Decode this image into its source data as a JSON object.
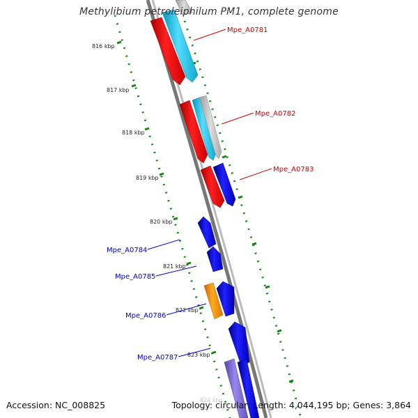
{
  "title": "Methylibium petroleiphilum PM1, complete genome",
  "footer": {
    "accession": "Accession: NC_008825",
    "topology": "Topology: circular; Length: 4,044,195 bp; Genes: 3,864"
  },
  "scale_labels": [
    "816 kbp",
    "817 kbp",
    "818 kbp",
    "819 kbp",
    "820 kbp",
    "821 kbp",
    "822 kbp",
    "823 kbp",
    "824 kbp"
  ],
  "genes": [
    {
      "name": "Mpe_A0781",
      "strand": "forward",
      "color": "#cc0000"
    },
    {
      "name": "Mpe_A0782",
      "strand": "forward",
      "color": "#cc0000"
    },
    {
      "name": "Mpe_A0783",
      "strand": "forward",
      "color": "#cc0000"
    },
    {
      "name": "Mpe_A0784",
      "strand": "reverse",
      "color": "#0000cc"
    },
    {
      "name": "Mpe_A0785",
      "strand": "reverse",
      "color": "#0000cc"
    },
    {
      "name": "Mpe_A0786",
      "strand": "reverse",
      "color": "#0000cc"
    },
    {
      "name": "Mpe_A0787",
      "strand": "reverse",
      "color": "#0000cc"
    }
  ],
  "colors": {
    "forward_label": "#cc0000",
    "reverse_label": "#0000cc",
    "ticks": "#118811",
    "cds_red": "#ff0000",
    "cds_blue": "#0000ee",
    "cds_cyan": "#22ccee",
    "cds_orange": "#ff9900",
    "cds_lavender": "#8877dd",
    "backbone": "#888888"
  }
}
